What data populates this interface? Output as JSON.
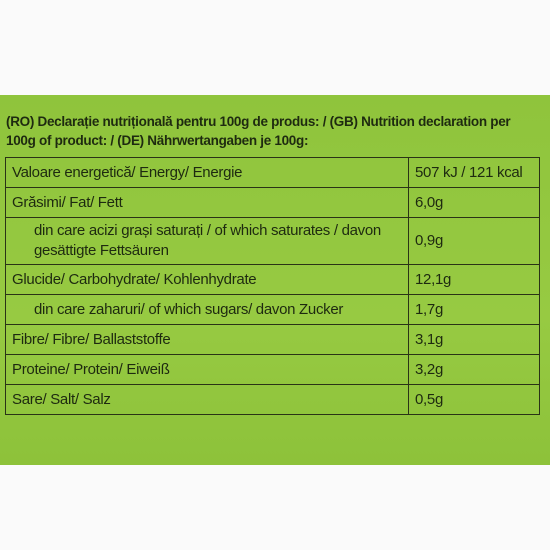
{
  "heading": "(RO) Declarație nutrițională pentru 100g de produs: / (GB) Nutrition declaration per 100g of product: / (DE) Nährwertangaben je 100g:",
  "table": {
    "rows": [
      [
        "Valoare energetică/ Energy/ Energie",
        "507 kJ / 121 kcal"
      ],
      [
        "Grăsimi/ Fat/ Fett",
        "6,0g"
      ],
      [
        "din care acizi grași saturați / of which saturates / davon gesättigte Fettsäuren",
        "0,9g"
      ],
      [
        "Glucide/ Carbohydrate/ Kohlenhydrate",
        "12,1g"
      ],
      [
        "din care zaharuri/ of which sugars/ davon Zucker",
        "1,7g"
      ],
      [
        "Fibre/ Fibre/ Ballaststoffe",
        "3,1g"
      ],
      [
        "Proteine/ Protein/ Eiweiß",
        "3,2g"
      ],
      [
        "Sare/ Salt/ Salz",
        "0,5g"
      ]
    ]
  }
}
